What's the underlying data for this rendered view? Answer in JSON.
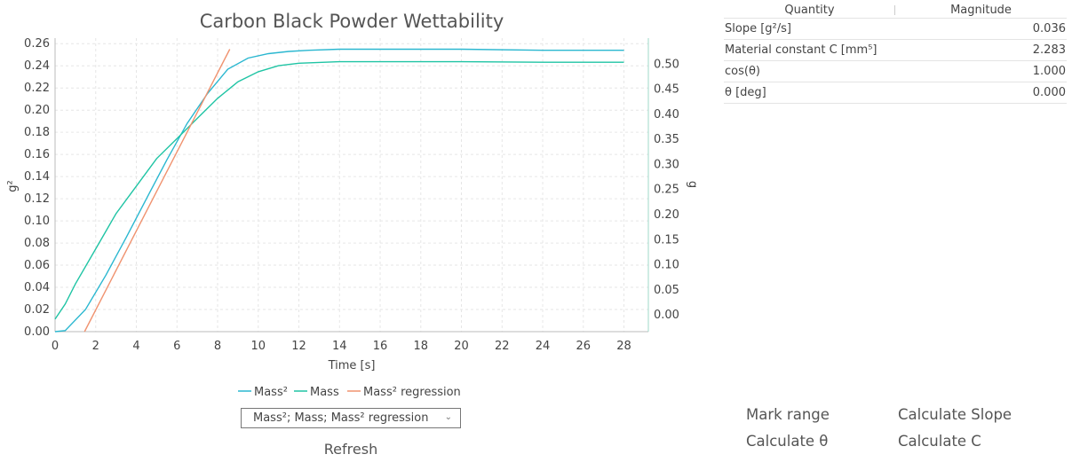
{
  "chart_data": {
    "type": "line",
    "title": "Carbon Black Powder Wettability",
    "xlabel": "Time [s]",
    "ylabel": "g²",
    "y2label": "g",
    "xlim": [
      0,
      29.2
    ],
    "ylim": [
      0,
      0.265
    ],
    "y2lim": [
      -0.035,
      0.55
    ],
    "x_ticks": [
      0,
      2,
      4,
      6,
      8,
      10,
      12,
      14,
      16,
      18,
      20,
      22,
      24,
      26,
      28
    ],
    "y_ticks": [
      0,
      0.02,
      0.04,
      0.06,
      0.08,
      0.1,
      0.12,
      0.14,
      0.16,
      0.18,
      0.2,
      0.22,
      0.24,
      0.26
    ],
    "y_tick_labels": [
      "0.00",
      "0.02",
      "0.04",
      "0.06",
      "0.08",
      "0.10",
      "0.12",
      "0.14",
      "0.16",
      "0.18",
      "0.20",
      "0.22",
      "0.24",
      "0.26"
    ],
    "y2_ticks": [
      0,
      0.05,
      0.1,
      0.15,
      0.2,
      0.25,
      0.3,
      0.35,
      0.4,
      0.45,
      0.5
    ],
    "y2_tick_labels": [
      "0.00",
      "0.05",
      "0.10",
      "0.15",
      "0.20",
      "0.25",
      "0.30",
      "0.35",
      "0.40",
      "0.45",
      "0.50"
    ],
    "grid": true,
    "legend_position": "bottom-center",
    "series": [
      {
        "name": "Mass²",
        "axis": "y",
        "color": "#2ab7d0",
        "x": [
          0,
          0.5,
          1.5,
          2.5,
          3.5,
          4.5,
          5.5,
          6.5,
          7.5,
          8.5,
          9.5,
          10.5,
          11.5,
          12.5,
          14,
          16,
          20,
          24,
          28
        ],
        "y": [
          0,
          0.001,
          0.02,
          0.051,
          0.085,
          0.12,
          0.155,
          0.188,
          0.215,
          0.237,
          0.247,
          0.251,
          0.253,
          0.254,
          0.255,
          0.255,
          0.255,
          0.254,
          0.254
        ]
      },
      {
        "name": "Mass",
        "axis": "y2",
        "color": "#1fc4a4",
        "x": [
          0,
          0.5,
          1,
          2,
          3,
          4,
          5,
          6,
          7,
          8,
          9,
          10,
          11,
          12,
          14,
          16,
          20,
          24,
          28
        ],
        "y": [
          -0.01,
          0.02,
          0.06,
          0.13,
          0.2,
          0.255,
          0.31,
          0.35,
          0.39,
          0.43,
          0.463,
          0.483,
          0.495,
          0.5,
          0.503,
          0.503,
          0.503,
          0.502,
          0.502
        ]
      },
      {
        "name": "Mass² regression",
        "axis": "y",
        "color": "#f0926f",
        "x": [
          1.45,
          8.6
        ],
        "y": [
          0,
          0.255
        ]
      }
    ]
  },
  "series_select": {
    "value": "Mass²; Mass; Mass² regression"
  },
  "refresh_label": "Refresh",
  "results": {
    "headers": [
      "Quantity",
      "Magnitude"
    ],
    "rows": [
      {
        "quantity": "Slope  [g²/s]",
        "magnitude": "0.036"
      },
      {
        "quantity": "Material constant C [mm⁵]",
        "magnitude": "2.283"
      },
      {
        "quantity": "cos(θ)",
        "magnitude": "1.000"
      },
      {
        "quantity": "θ [deg]",
        "magnitude": "0.000"
      }
    ]
  },
  "actions": {
    "mark_range": "Mark range",
    "calculate_slope": "Calculate Slope",
    "calculate_theta": "Calculate θ",
    "calculate_c": "Calculate C"
  }
}
